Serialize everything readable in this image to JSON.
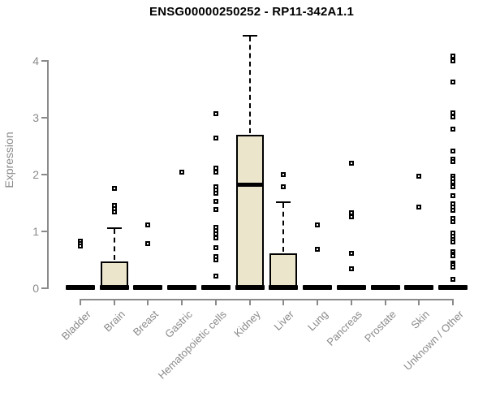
{
  "title": "ENSG00000250252 - RP11-342A1.1",
  "chart_data": {
    "type": "boxplot",
    "title": "ENSG00000250252 - RP11-342A1.1",
    "xlabel": "",
    "ylabel": "Expression",
    "ylim": [
      0,
      4.5
    ],
    "yticks": [
      0,
      1,
      2,
      3,
      4
    ],
    "grid": false,
    "legend": "none",
    "categories": [
      "Bladder",
      "Brain",
      "Breast",
      "Gastric",
      "Hematopoietic cells",
      "Kidney",
      "Liver",
      "Lung",
      "Pancreas",
      "Prostate",
      "Skin",
      "Unknown / Other"
    ],
    "series": [
      {
        "category": "Bladder",
        "q1": 0,
        "median": 0,
        "q3": 0,
        "whisker_low": 0,
        "whisker_high": 0,
        "outliers": [
          0.81,
          0.77,
          0.73
        ]
      },
      {
        "category": "Brain",
        "q1": 0,
        "median": 0,
        "q3": 0.46,
        "whisker_low": 0,
        "whisker_high": 1.06,
        "outliers": [
          1.74,
          1.45,
          1.38,
          1.33
        ]
      },
      {
        "category": "Breast",
        "q1": 0,
        "median": 0,
        "q3": 0,
        "whisker_low": 0,
        "whisker_high": 0,
        "outliers": [
          1.1,
          0.77
        ]
      },
      {
        "category": "Gastric",
        "q1": 0,
        "median": 0,
        "q3": 0,
        "whisker_low": 0,
        "whisker_high": 0,
        "outliers": [
          2.03
        ]
      },
      {
        "category": "Hematopoietic cells",
        "q1": 0,
        "median": 0,
        "q3": 0,
        "whisker_low": 0,
        "whisker_high": 0,
        "outliers": [
          3.06,
          2.63,
          2.1,
          2.03,
          1.77,
          1.71,
          1.66,
          1.51,
          1.37,
          1.06,
          1.0,
          0.94,
          0.87,
          0.7,
          0.54,
          0.49,
          0.2
        ]
      },
      {
        "category": "Kidney",
        "q1": 0,
        "median": 1.81,
        "q3": 2.69,
        "whisker_low": 0,
        "whisker_high": 4.44,
        "outliers": []
      },
      {
        "category": "Liver",
        "q1": 0,
        "median": 0,
        "q3": 0.6,
        "whisker_low": 0,
        "whisker_high": 1.51,
        "outliers": [
          1.99,
          1.77
        ]
      },
      {
        "category": "Lung",
        "q1": 0,
        "median": 0,
        "q3": 0,
        "whisker_low": 0,
        "whisker_high": 0,
        "outliers": [
          1.1,
          0.67
        ]
      },
      {
        "category": "Pancreas",
        "q1": 0,
        "median": 0,
        "q3": 0,
        "whisker_low": 0,
        "whisker_high": 0,
        "outliers": [
          2.19,
          1.31,
          1.24,
          0.6,
          0.33
        ]
      },
      {
        "category": "Prostate",
        "q1": 0,
        "median": 0,
        "q3": 0,
        "whisker_low": 0,
        "whisker_high": 0,
        "outliers": []
      },
      {
        "category": "Skin",
        "q1": 0,
        "median": 0,
        "q3": 0,
        "whisker_low": 0,
        "whisker_high": 0,
        "outliers": [
          1.96,
          1.41
        ]
      },
      {
        "category": "Unknown / Other",
        "q1": 0,
        "median": 0,
        "q3": 0,
        "whisker_low": 0,
        "whisker_high": 0,
        "outliers": [
          4.07,
          3.99,
          3.61,
          3.07,
          3.0,
          2.79,
          2.4,
          2.26,
          2.21,
          1.96,
          1.91,
          1.86,
          1.77,
          1.61,
          1.47,
          1.41,
          1.36,
          1.21,
          1.16,
          0.96,
          0.9,
          0.84,
          0.8,
          0.63,
          0.59,
          0.56,
          0.43,
          0.4,
          0.36,
          0.14
        ]
      }
    ],
    "colors": {
      "box_fill": "#ebe5cc",
      "box_border": "#000000",
      "median": "#000000",
      "whisker": "#000000",
      "outlier": "#000000",
      "axis": "#8a8a8a",
      "tick_label": "#8a8a8a",
      "title": "#000000",
      "background": "#ffffff"
    }
  }
}
